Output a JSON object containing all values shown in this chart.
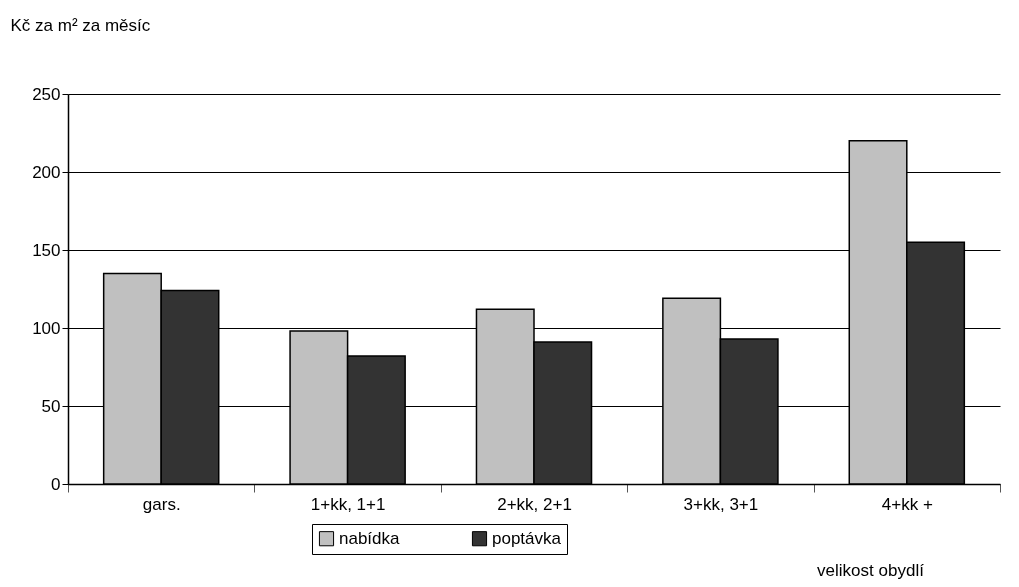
{
  "chart_data": {
    "type": "bar",
    "ylabel": "Kč za m² za měsíc",
    "xlabel": "velikost obydlí",
    "categories": [
      "gars.",
      "1+kk, 1+1",
      "2+kk, 2+1",
      "3+kk, 3+1",
      "4+kk +"
    ],
    "series": [
      {
        "name": "nabídka",
        "color": "#c0c0c0",
        "values": [
          135,
          98,
          112,
          119,
          220
        ]
      },
      {
        "name": "poptávka",
        "color": "#333333",
        "values": [
          124,
          82,
          91,
          93,
          155
        ]
      }
    ],
    "ylim": [
      0,
      250
    ],
    "yticks": [
      0,
      50,
      100,
      150,
      200,
      250
    ],
    "grid": "y",
    "legend": "bottom"
  }
}
